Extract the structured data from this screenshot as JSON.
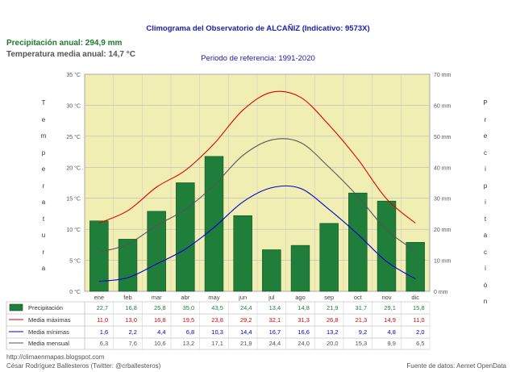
{
  "summary": {
    "precipitation": "Precipitación anual: 294,9 mm",
    "temperature": "Temperatura media anual: 14,7 °C"
  },
  "axes": {
    "left_label": "Temperatura",
    "right_label": "Precipitación"
  },
  "footer": {
    "url": "http://climaenmapas.blogspot.com",
    "author": "César Rodríguez Ballesteros (Twitter: @crballesteros)",
    "source": "Fuente de datos: Aemet OpenData"
  },
  "colors": {
    "plot_bg": "#f1eeb3",
    "bar": "#1f7f3a",
    "max": "#e00000",
    "min": "#0000cc",
    "mean": "#555555"
  },
  "chart_data": {
    "type": "bar",
    "title": "Climograma del Observatorio de ALCAÑIZ (Indicativo: 9573X)",
    "subtitle": "Periodo de referencia: 1991-2020",
    "categories": [
      "ene",
      "feb",
      "mar",
      "abr",
      "may",
      "jun",
      "jul",
      "ago",
      "sep",
      "oct",
      "nov",
      "dic"
    ],
    "left_axis": {
      "unit": "°C",
      "range": [
        0,
        35
      ],
      "ticks": [
        "0 °C",
        "5 °C",
        "10 °C",
        "15 °C",
        "20 °C",
        "25 °C",
        "30 °C",
        "35 °C"
      ]
    },
    "right_axis": {
      "unit": "mm",
      "range": [
        0,
        70
      ],
      "ticks": [
        "0 mm",
        "10 mm",
        "20 mm",
        "30 mm",
        "40 mm",
        "50 mm",
        "60 mm",
        "70 mm"
      ]
    },
    "grid": true,
    "series": [
      {
        "name": "Precipitación",
        "type": "bar",
        "axis": "right",
        "values": [
          22.7,
          16.8,
          25.8,
          35.0,
          43.5,
          24.4,
          13.4,
          14.8,
          21.9,
          31.7,
          29.1,
          15.8
        ],
        "labels": [
          "22,7",
          "16,8",
          "25,8",
          "35,0",
          "43,5",
          "24,4",
          "13,4",
          "14,8",
          "21,9",
          "31,7",
          "29,1",
          "15,8"
        ]
      },
      {
        "name": "Media máximas",
        "type": "line",
        "axis": "left",
        "values": [
          11.0,
          13.0,
          16.8,
          19.5,
          23.8,
          29.2,
          32.1,
          31.3,
          26.8,
          21.3,
          14.9,
          11.0
        ],
        "labels": [
          "11,0",
          "13,0",
          "16,8",
          "19,5",
          "23,8",
          "29,2",
          "32,1",
          "31,3",
          "26,8",
          "21,3",
          "14,9",
          "11,0"
        ]
      },
      {
        "name": "Media mínimas",
        "type": "line",
        "axis": "left",
        "values": [
          1.6,
          2.2,
          4.4,
          6.8,
          10.3,
          14.4,
          16.7,
          16.6,
          13.2,
          9.2,
          4.8,
          2.0
        ],
        "labels": [
          "1,6",
          "2,2",
          "4,4",
          "6,8",
          "10,3",
          "14,4",
          "16,7",
          "16,6",
          "13,2",
          "9,2",
          "4,8",
          "2,0"
        ]
      },
      {
        "name": "Media mensual",
        "type": "line",
        "axis": "left",
        "values": [
          6.3,
          7.6,
          10.6,
          13.2,
          17.1,
          21.9,
          24.4,
          24.0,
          20.0,
          15.3,
          9.9,
          6.5
        ],
        "labels": [
          "6,3",
          "7,6",
          "10,6",
          "13,2",
          "17,1",
          "21,9",
          "24,4",
          "24,0",
          "20,0",
          "15,3",
          "9,9",
          "6,5"
        ]
      }
    ]
  }
}
